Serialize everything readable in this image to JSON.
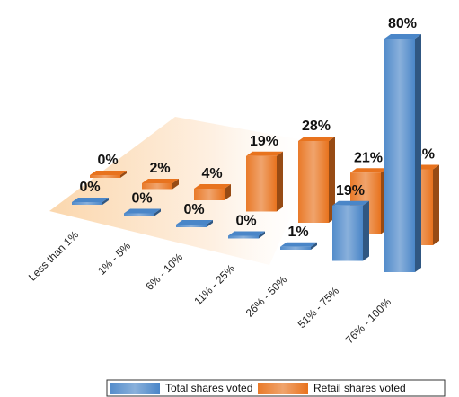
{
  "chart_data": {
    "type": "bar3d",
    "categories": [
      "Less than 1%",
      "1% - 5%",
      "6% - 10%",
      "11% - 25%",
      "26% - 50%",
      "51% - 75%",
      "76% - 100%"
    ],
    "series": [
      {
        "name": "Total shares voted",
        "color": "#4a86c8",
        "values": [
          0,
          0,
          0,
          0,
          1,
          19,
          80
        ],
        "value_labels": [
          "0%",
          "0%",
          "0%",
          "0%",
          "1%",
          "19%",
          "80%"
        ]
      },
      {
        "name": "Retail shares voted",
        "color": "#e8731e",
        "values": [
          0,
          2,
          4,
          19,
          28,
          21,
          26
        ],
        "value_labels": [
          "0%",
          "2%",
          "4%",
          "19%",
          "28%",
          "21%",
          "26%"
        ]
      }
    ]
  }
}
